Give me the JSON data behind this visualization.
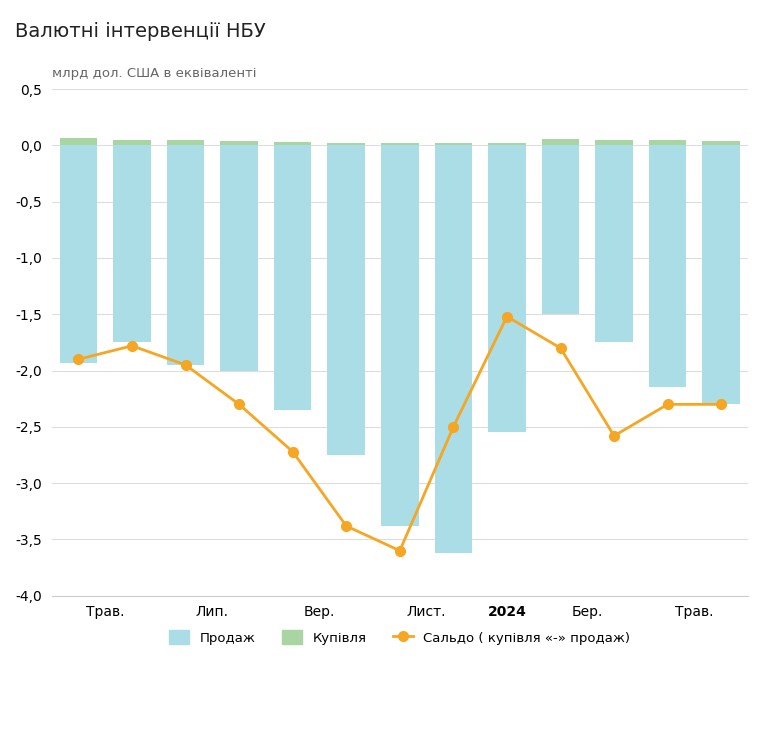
{
  "title": "Валютні інтервенції НБУ",
  "ylabel": "млрд дол. США в еквіваленті",
  "x_labels": [
    "Трав.",
    "Лип.",
    "Вер.",
    "Лист.",
    "2024",
    "Бер.",
    "Трав."
  ],
  "ylim": [
    -4.0,
    0.5
  ],
  "ytick_vals": [
    0.5,
    0.0,
    -0.5,
    -1.0,
    -1.5,
    -2.0,
    -2.5,
    -3.0,
    -3.5,
    -4.0
  ],
  "ytick_labels": [
    "0,5",
    "0,0",
    "-0,5",
    "-1,0",
    "-1,5",
    "-2,0",
    "-2,5",
    "-3,0",
    "-3,5",
    "-4,0"
  ],
  "sales": [
    -1.93,
    -1.75,
    -1.95,
    -2.0,
    -2.35,
    -2.75,
    -3.38,
    -3.62,
    -2.55,
    -1.5,
    -1.75,
    -2.15,
    -2.3
  ],
  "purchase": [
    0.07,
    0.05,
    0.05,
    0.04,
    0.03,
    0.02,
    0.02,
    0.02,
    0.02,
    0.06,
    0.05,
    0.05,
    0.04
  ],
  "saldo_x": [
    0,
    1,
    2,
    3,
    4,
    5,
    6,
    7,
    8,
    9,
    10,
    11,
    12
  ],
  "saldo_y": [
    -1.9,
    -1.78,
    -1.95,
    -2.3,
    -2.72,
    -3.38,
    -3.6,
    -2.5,
    -1.52,
    -1.8,
    -2.58,
    -2.3,
    -2.3
  ],
  "tick_positions": [
    0.5,
    2.5,
    4.5,
    6.5,
    8.0,
    9.5,
    11.5
  ],
  "sales_color": "#aadde6",
  "purchase_color": "#a8d5a2",
  "saldo_color": "#f5a623",
  "background_color": "#ffffff",
  "grid_color": "#dddddd",
  "legend_labels": [
    "Продаж",
    "Купівля",
    "Сальдо ( купівля «-» продаж)"
  ],
  "title_fontsize": 14,
  "tick_fontsize": 10,
  "ylabel_fontsize": 9.5
}
